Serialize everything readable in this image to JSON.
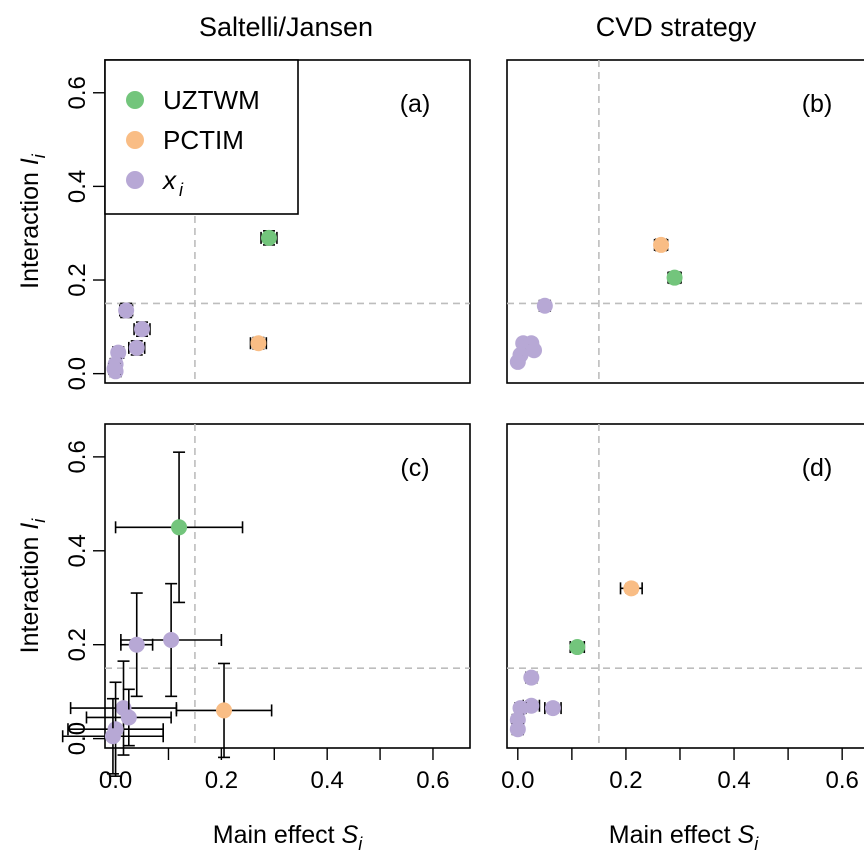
{
  "colors": {
    "UZTWM": "#73c57c",
    "PCTIM": "#f9bd85",
    "xi": "#b7a8d5",
    "reference_line": "#bdbdbd"
  },
  "column_titles": [
    "Saltelli/Jansen",
    "CVD strategy"
  ],
  "axes": {
    "x_label": "Main effect",
    "x_symbol": "S",
    "x_subscript": "i",
    "y_label": "Interaction",
    "y_symbol": "I",
    "y_subscript": "i",
    "x_ticks": [
      "0.0",
      "0.2",
      "0.4",
      "0.6"
    ],
    "y_ticks": [
      "0.0",
      "0.2",
      "0.4",
      "0.6"
    ]
  },
  "legend": [
    {
      "key": "UZTWM",
      "label": "UZTWM",
      "italic": false
    },
    {
      "key": "PCTIM",
      "label": "PCTIM",
      "italic": false
    },
    {
      "key": "xi",
      "label": "x",
      "subscript": "i",
      "italic": true
    }
  ],
  "chart_data": [
    {
      "panel": "(a)",
      "type": "scatter",
      "xlim": [
        -0.02,
        0.67
      ],
      "ylim": [
        -0.02,
        0.67
      ],
      "grid": false,
      "reference_lines": {
        "x": 0.15,
        "y": 0.15
      },
      "legend_position": "top-left",
      "points": [
        {
          "series": "UZTWM",
          "x": 0.29,
          "y": 0.29,
          "xerr": 0.015,
          "yerr": 0.015
        },
        {
          "series": "PCTIM",
          "x": 0.27,
          "y": 0.065,
          "xerr": 0.015,
          "yerr": 0.012
        },
        {
          "series": "xi",
          "x": 0.02,
          "y": 0.135,
          "xerr": 0.012,
          "yerr": 0.015
        },
        {
          "series": "xi",
          "x": 0.05,
          "y": 0.095,
          "xerr": 0.015,
          "yerr": 0.015
        },
        {
          "series": "xi",
          "x": 0.04,
          "y": 0.055,
          "xerr": 0.015,
          "yerr": 0.015
        },
        {
          "series": "xi",
          "x": 0.005,
          "y": 0.045,
          "xerr": 0.01,
          "yerr": 0.012
        },
        {
          "series": "xi",
          "x": 0.0,
          "y": 0.02,
          "xerr": 0.01,
          "yerr": 0.012
        },
        {
          "series": "xi",
          "x": 0.0,
          "y": 0.005,
          "xerr": 0.01,
          "yerr": 0.01
        },
        {
          "series": "xi",
          "x": -0.002,
          "y": 0.01,
          "xerr": 0.01,
          "yerr": 0.01
        }
      ]
    },
    {
      "panel": "(b)",
      "type": "scatter",
      "xlim": [
        -0.02,
        0.67
      ],
      "ylim": [
        -0.02,
        0.67
      ],
      "grid": false,
      "reference_lines": {
        "x": 0.15,
        "y": 0.15
      },
      "points": [
        {
          "series": "PCTIM",
          "x": 0.265,
          "y": 0.275,
          "xerr": 0.012,
          "yerr": 0.012
        },
        {
          "series": "UZTWM",
          "x": 0.29,
          "y": 0.205,
          "xerr": 0.012,
          "yerr": 0.012
        },
        {
          "series": "xi",
          "x": 0.05,
          "y": 0.145,
          "xerr": 0.01,
          "yerr": 0.008
        },
        {
          "series": "xi",
          "x": 0.01,
          "y": 0.065,
          "xerr": 0.008,
          "yerr": 0.008
        },
        {
          "series": "xi",
          "x": 0.025,
          "y": 0.065,
          "xerr": 0.008,
          "yerr": 0.008
        },
        {
          "series": "xi",
          "x": 0.03,
          "y": 0.05,
          "xerr": 0.008,
          "yerr": 0.008
        },
        {
          "series": "xi",
          "x": 0.005,
          "y": 0.04,
          "xerr": 0.008,
          "yerr": 0.008
        },
        {
          "series": "xi",
          "x": 0.0,
          "y": 0.025,
          "xerr": 0.008,
          "yerr": 0.008
        }
      ]
    },
    {
      "panel": "(c)",
      "type": "scatter",
      "xlim": [
        -0.02,
        0.67
      ],
      "ylim": [
        -0.02,
        0.67
      ],
      "grid": false,
      "reference_lines": {
        "x": 0.15,
        "y": 0.15
      },
      "points": [
        {
          "series": "UZTWM",
          "x": 0.12,
          "y": 0.45,
          "xerr": 0.12,
          "yerr": 0.16
        },
        {
          "series": "PCTIM",
          "x": 0.205,
          "y": 0.06,
          "xerr": 0.09,
          "yerr": 0.1
        },
        {
          "series": "xi",
          "x": 0.105,
          "y": 0.21,
          "xerr": 0.095,
          "yerr": 0.12
        },
        {
          "series": "xi",
          "x": 0.04,
          "y": 0.2,
          "xerr": 0.03,
          "yerr": 0.11
        },
        {
          "series": "xi",
          "x": 0.015,
          "y": 0.065,
          "xerr": 0.1,
          "yerr": 0.1
        },
        {
          "series": "xi",
          "x": 0.025,
          "y": 0.045,
          "xerr": 0.08,
          "yerr": 0.06
        },
        {
          "series": "xi",
          "x": 0.0,
          "y": 0.02,
          "xerr": 0.09,
          "yerr": 0.1
        },
        {
          "series": "xi",
          "x": -0.005,
          "y": 0.005,
          "xerr": 0.095,
          "yerr": 0.08
        }
      ]
    },
    {
      "panel": "(d)",
      "type": "scatter",
      "xlim": [
        -0.02,
        0.67
      ],
      "ylim": [
        -0.02,
        0.67
      ],
      "grid": false,
      "reference_lines": {
        "x": 0.15,
        "y": 0.15
      },
      "points": [
        {
          "series": "PCTIM",
          "x": 0.21,
          "y": 0.32,
          "xerr": 0.02,
          "yerr": 0.01
        },
        {
          "series": "UZTWM",
          "x": 0.11,
          "y": 0.195,
          "xerr": 0.013,
          "yerr": 0.01
        },
        {
          "series": "xi",
          "x": 0.025,
          "y": 0.13,
          "xerr": 0.01,
          "yerr": 0.01
        },
        {
          "series": "xi",
          "x": 0.065,
          "y": 0.065,
          "xerr": 0.015,
          "yerr": 0.01
        },
        {
          "series": "xi",
          "x": 0.025,
          "y": 0.07,
          "xerr": 0.015,
          "yerr": 0.01
        },
        {
          "series": "xi",
          "x": 0.005,
          "y": 0.065,
          "xerr": 0.01,
          "yerr": 0.01
        },
        {
          "series": "xi",
          "x": 0.0,
          "y": 0.04,
          "xerr": 0.01,
          "yerr": 0.01
        },
        {
          "series": "xi",
          "x": 0.0,
          "y": 0.02,
          "xerr": 0.01,
          "yerr": 0.01
        }
      ]
    }
  ]
}
